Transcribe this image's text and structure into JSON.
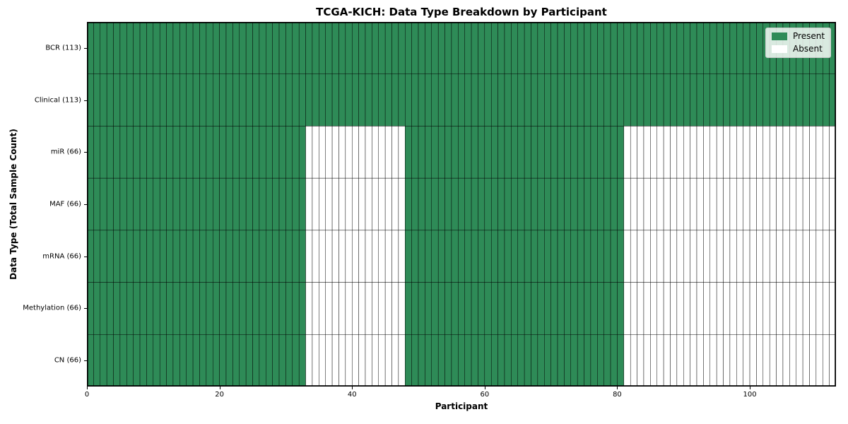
{
  "chart_data": {
    "type": "heatmap",
    "title": "TCGA-KICH: Data Type Breakdown by Participant",
    "xlabel": "Participant",
    "ylabel": "Data Type (Total Sample Count)",
    "n_participants": 113,
    "x_ticks": [
      0,
      20,
      40,
      60,
      80,
      100
    ],
    "xlim": [
      0,
      113
    ],
    "grid": "cell-borders",
    "present_color": "#2e8b57",
    "absent_color": "#ffffff",
    "cell_edge_color": "#000000",
    "legend_position": "upper right",
    "legend": [
      {
        "label": "Present",
        "color": "#2e8b57"
      },
      {
        "label": "Absent",
        "color": "#ffffff"
      }
    ],
    "rows": [
      {
        "label": "BCR (113)",
        "data_type": "BCR",
        "total_samples": 113,
        "present_ranges": [
          [
            0,
            113
          ]
        ]
      },
      {
        "label": "Clinical (113)",
        "data_type": "Clinical",
        "total_samples": 113,
        "present_ranges": [
          [
            0,
            113
          ]
        ]
      },
      {
        "label": "miR (66)",
        "data_type": "miR",
        "total_samples": 66,
        "present_ranges": [
          [
            0,
            33
          ],
          [
            48,
            81
          ]
        ]
      },
      {
        "label": "MAF (66)",
        "data_type": "MAF",
        "total_samples": 66,
        "present_ranges": [
          [
            0,
            33
          ],
          [
            48,
            81
          ]
        ]
      },
      {
        "label": "mRNA (66)",
        "data_type": "mRNA",
        "total_samples": 66,
        "present_ranges": [
          [
            0,
            33
          ],
          [
            48,
            81
          ]
        ]
      },
      {
        "label": "Methylation (66)",
        "data_type": "Methylation",
        "total_samples": 66,
        "present_ranges": [
          [
            0,
            33
          ],
          [
            48,
            81
          ]
        ]
      },
      {
        "label": "CN (66)",
        "data_type": "CN",
        "total_samples": 66,
        "present_ranges": [
          [
            0,
            33
          ],
          [
            48,
            81
          ]
        ]
      }
    ]
  }
}
